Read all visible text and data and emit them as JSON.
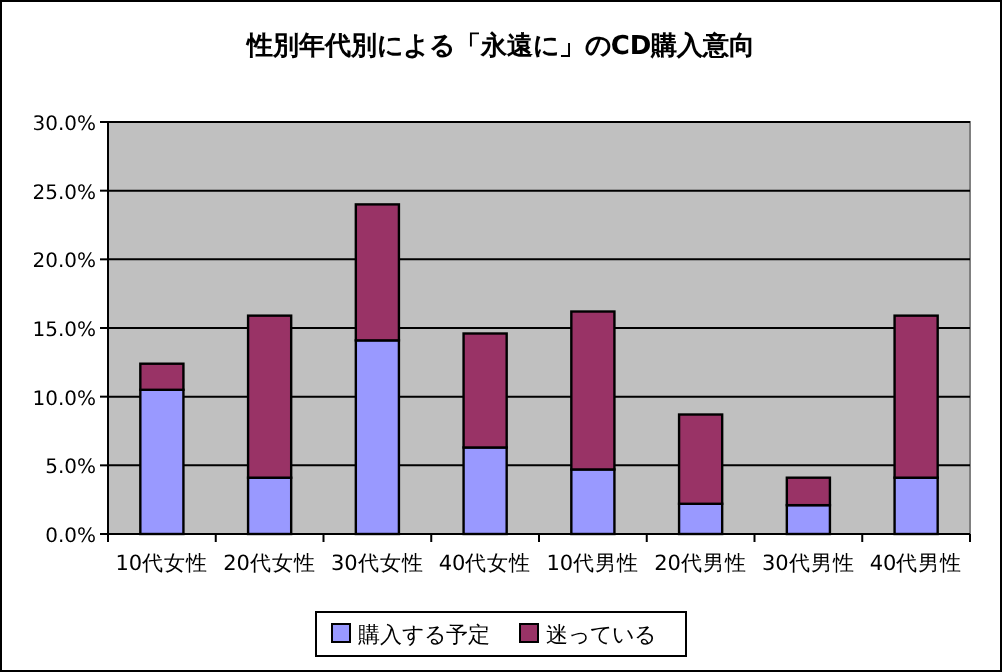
{
  "chart_data": {
    "type": "bar",
    "stacked": true,
    "title": "性別年代別による「永遠に」のCD購入意向",
    "categories": [
      "10代女性",
      "20代女性",
      "30代女性",
      "40代女性",
      "10代男性",
      "20代男性",
      "30代男性",
      "40代男性"
    ],
    "series": [
      {
        "name": "購入する予定",
        "color": "#9999ff",
        "values": [
          10.5,
          4.1,
          14.1,
          6.3,
          4.7,
          2.2,
          2.1,
          4.1
        ]
      },
      {
        "name": "迷っている",
        "color": "#993366",
        "values": [
          1.9,
          11.8,
          9.9,
          8.3,
          11.5,
          6.5,
          2.0,
          11.8
        ]
      }
    ],
    "ylim": [
      0,
      30
    ],
    "yticks": [
      {
        "value": 0,
        "label": "0.0%"
      },
      {
        "value": 5,
        "label": "5.0%"
      },
      {
        "value": 10,
        "label": "10.0%"
      },
      {
        "value": 15,
        "label": "15.0%"
      },
      {
        "value": 20,
        "label": "20.0%"
      },
      {
        "value": 25,
        "label": "25.0%"
      },
      {
        "value": 30,
        "label": "30.0%"
      }
    ],
    "grid": "y",
    "legend": "bottom"
  }
}
